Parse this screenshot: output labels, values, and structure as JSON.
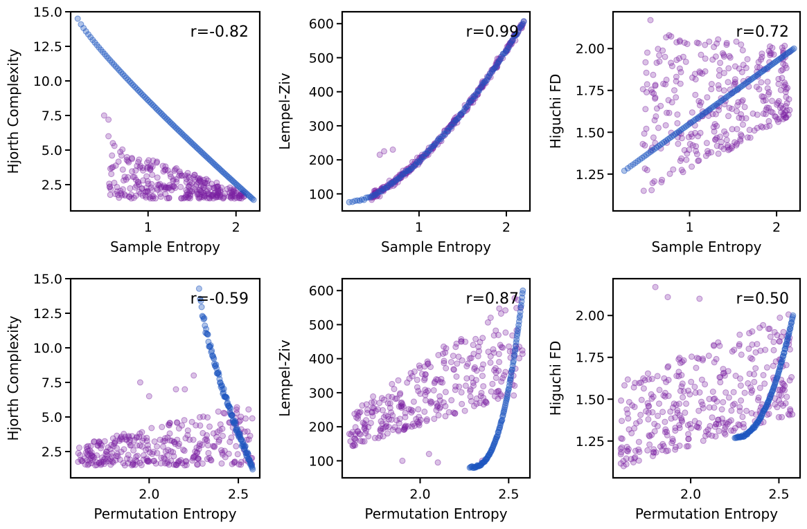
{
  "colors": {
    "series_a": "#7b1fa2",
    "series_b": "#1e56c0"
  },
  "chart_data": [
    {
      "type": "scatter",
      "id": "sampen-hjorth",
      "xlabel": "Sample Entropy",
      "ylabel": "Hjorth Complexity",
      "xlim": [
        0.12,
        2.27
      ],
      "ylim": [
        0.6,
        15.0
      ],
      "xticks": [
        1,
        2
      ],
      "xtick_labels": [
        "1",
        "2"
      ],
      "yticks": [
        2.5,
        5.0,
        7.5,
        10.0,
        12.5,
        15.0
      ],
      "ytick_labels": [
        "2.5",
        "5.0",
        "7.5",
        "10.0",
        "12.5",
        "15.0"
      ],
      "annotation": "r=-0.82",
      "curve": {
        "kind": "power",
        "x0": 0.2,
        "x1": 2.2,
        "y0": 14.5,
        "y1": 1.4,
        "p": 0.87,
        "n": 110
      },
      "cloud": {
        "kind": "band",
        "x0": 0.55,
        "x1": 2.1,
        "lo_start": 1.5,
        "lo_end": 1.5,
        "hi_start": 5.5,
        "hi_end": 1.9,
        "n": 300,
        "extras": [
          [
            0.5,
            7.5
          ],
          [
            0.55,
            6.0
          ],
          [
            0.6,
            5.5
          ],
          [
            0.55,
            7.2
          ]
        ]
      }
    },
    {
      "type": "scatter",
      "id": "sampen-lz",
      "xlabel": "Sample Entropy",
      "ylabel": "Lempel-Ziv",
      "xlim": [
        0.12,
        2.27
      ],
      "ylim": [
        50,
        635
      ],
      "xticks": [
        1,
        2
      ],
      "xtick_labels": [
        "1",
        "2"
      ],
      "yticks": [
        100,
        200,
        300,
        400,
        500,
        600
      ],
      "ytick_labels": [
        "100",
        "200",
        "300",
        "400",
        "500",
        "600"
      ],
      "annotation": "r=0.99",
      "curve": {
        "kind": "power",
        "x0": 0.2,
        "x1": 2.2,
        "y0": 75,
        "y1": 605,
        "p": 1.6,
        "n": 110,
        "spread": 6
      },
      "cloud": {
        "kind": "curve",
        "x0": 0.45,
        "x1": 2.2,
        "curve_ref": true,
        "jitter": 18,
        "n": 260,
        "extras": [
          [
            0.55,
            215
          ],
          [
            0.6,
            225
          ],
          [
            0.7,
            230
          ]
        ]
      }
    },
    {
      "type": "scatter",
      "id": "sampen-higuchi",
      "xlabel": "Sample Entropy",
      "ylabel": "Higuchi FD",
      "xlim": [
        0.12,
        2.27
      ],
      "ylim": [
        1.03,
        2.22
      ],
      "xticks": [
        1,
        2
      ],
      "xtick_labels": [
        "1",
        "2"
      ],
      "yticks": [
        1.25,
        1.5,
        1.75,
        2.0
      ],
      "ytick_labels": [
        "1.25",
        "1.50",
        "1.75",
        "2.00"
      ],
      "annotation": "r=0.72",
      "curve": {
        "kind": "power",
        "x0": 0.25,
        "x1": 2.2,
        "y0": 1.27,
        "y1": 2.0,
        "p": 1.0,
        "n": 100
      },
      "cloud": {
        "kind": "band",
        "x0": 0.45,
        "x1": 2.15,
        "lo_start": 1.1,
        "lo_end": 1.6,
        "hi_start": 2.1,
        "hi_end": 2.02,
        "n": 330,
        "extras": [
          [
            0.55,
            2.17
          ],
          [
            2.1,
            1.95
          ],
          [
            2.15,
            1.98
          ],
          [
            2.1,
            1.9
          ]
        ]
      }
    },
    {
      "type": "scatter",
      "id": "permen-hjorth",
      "xlabel": "Permutation Entropy",
      "ylabel": "Hjorth Complexity",
      "xlim": [
        1.56,
        2.62
      ],
      "ylim": [
        0.6,
        15.0
      ],
      "xticks": [
        2.0,
        2.5
      ],
      "xtick_labels": [
        "2.0",
        "2.5"
      ],
      "yticks": [
        2.5,
        5.0,
        7.5,
        10.0,
        12.5,
        15.0
      ],
      "ytick_labels": [
        "2.5",
        "5.0",
        "7.5",
        "10.0",
        "12.5",
        "15.0"
      ],
      "annotation": "r=-0.59",
      "curve": {
        "kind": "power",
        "x0": 2.28,
        "x1": 2.58,
        "y0": 14.4,
        "y1": 1.3,
        "p": 0.7,
        "n": 110,
        "spread": 0.4
      },
      "cloud": {
        "kind": "band",
        "x0": 1.6,
        "x1": 2.58,
        "lo_start": 1.5,
        "lo_end": 1.5,
        "hi_start": 3.0,
        "hi_end": 6.0,
        "n": 320,
        "extras": [
          [
            1.95,
            7.5
          ],
          [
            2.0,
            6.5
          ],
          [
            2.15,
            7.0
          ],
          [
            2.25,
            8.0
          ],
          [
            2.2,
            7.0
          ]
        ]
      }
    },
    {
      "type": "scatter",
      "id": "permen-lz",
      "xlabel": "Permutation Entropy",
      "ylabel": "Lempel-Ziv",
      "xlim": [
        1.56,
        2.62
      ],
      "ylim": [
        50,
        635
      ],
      "xticks": [
        2.0,
        2.5
      ],
      "xtick_labels": [
        "2.0",
        "2.5"
      ],
      "yticks": [
        100,
        200,
        300,
        400,
        500,
        600
      ],
      "ytick_labels": [
        "100",
        "200",
        "300",
        "400",
        "500",
        "600"
      ],
      "annotation": "r=0.87",
      "curve": {
        "kind": "power",
        "x0": 2.28,
        "x1": 2.58,
        "y0": 80,
        "y1": 600,
        "p": 2.6,
        "n": 110,
        "spread": 5
      },
      "cloud": {
        "kind": "band",
        "x0": 1.6,
        "x1": 2.58,
        "lo_start": 140,
        "lo_end": 300,
        "hi_start": 240,
        "hi_end": 600,
        "n": 320,
        "extras": [
          [
            1.9,
            100
          ],
          [
            2.05,
            120
          ],
          [
            2.1,
            95
          ],
          [
            2.35,
            100
          ]
        ]
      }
    },
    {
      "type": "scatter",
      "id": "permen-higuchi",
      "xlabel": "Permutation Entropy",
      "ylabel": "Higuchi FD",
      "xlim": [
        1.56,
        2.62
      ],
      "ylim": [
        1.03,
        2.22
      ],
      "xticks": [
        2.0,
        2.5
      ],
      "xtick_labels": [
        "2.0",
        "2.5"
      ],
      "yticks": [
        1.25,
        1.5,
        1.75,
        2.0
      ],
      "ytick_labels": [
        "1.25",
        "1.50",
        "1.75",
        "2.00"
      ],
      "annotation": "r=0.50",
      "curve": {
        "kind": "power",
        "x0": 2.25,
        "x1": 2.58,
        "y0": 1.27,
        "y1": 2.0,
        "p": 2.2,
        "n": 110,
        "spread": 0.01
      },
      "cloud": {
        "kind": "band",
        "x0": 1.6,
        "x1": 2.58,
        "lo_start": 1.1,
        "lo_end": 1.4,
        "hi_start": 1.6,
        "hi_end": 2.03,
        "n": 340,
        "extras": [
          [
            1.8,
            2.17
          ],
          [
            1.87,
            2.11
          ],
          [
            2.05,
            2.1
          ],
          [
            1.62,
            1.1
          ]
        ]
      }
    }
  ]
}
